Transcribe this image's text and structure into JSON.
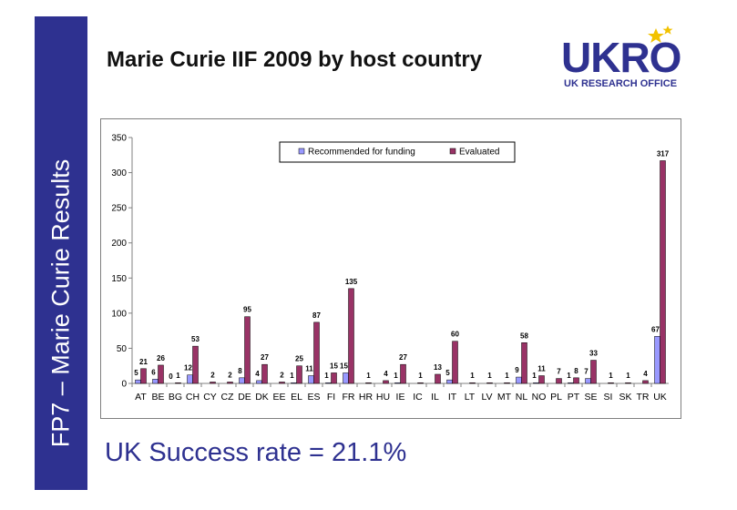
{
  "sidebar": {
    "text": "FP7 – Marie Curie Results"
  },
  "title": "Marie Curie IIF 2009 by host country",
  "logo": {
    "word": "UKRO",
    "subtitle": "UK RESEARCH OFFICE"
  },
  "success": "UK Success rate = 21.1%",
  "colors": {
    "sidebar": "#2e3190",
    "brand": "#2e3190",
    "recommended": "#9999ff",
    "evaluated": "#993366",
    "star": "#f2c200"
  },
  "chart_data": {
    "type": "bar",
    "categories": [
      "AT",
      "BE",
      "BG",
      "CH",
      "CY",
      "CZ",
      "DE",
      "DK",
      "EE",
      "EL",
      "ES",
      "FI",
      "FR",
      "HR",
      "HU",
      "IE",
      "IC",
      "IL",
      "IT",
      "LT",
      "LV",
      "MT",
      "NL",
      "NO",
      "PL",
      "PT",
      "SE",
      "SI",
      "SK",
      "TR",
      "UK"
    ],
    "series": [
      {
        "name": "Recommended for funding",
        "values": [
          5,
          6,
          0,
          12,
          null,
          null,
          8,
          4,
          null,
          1,
          11,
          1,
          15,
          null,
          null,
          1,
          null,
          null,
          5,
          null,
          null,
          null,
          9,
          1,
          null,
          1,
          7,
          null,
          null,
          null,
          67
        ]
      },
      {
        "name": "Evaluated",
        "values": [
          21,
          26,
          1,
          53,
          2,
          2,
          95,
          27,
          2,
          25,
          87,
          15,
          135,
          1,
          4,
          27,
          1,
          13,
          60,
          1,
          1,
          1,
          58,
          11,
          7,
          8,
          33,
          1,
          1,
          4,
          317
        ]
      }
    ],
    "ylim": [
      0,
      350
    ],
    "yticks": [
      0,
      50,
      100,
      150,
      200,
      250,
      300,
      350
    ],
    "grid": false,
    "legend": "top-center"
  }
}
